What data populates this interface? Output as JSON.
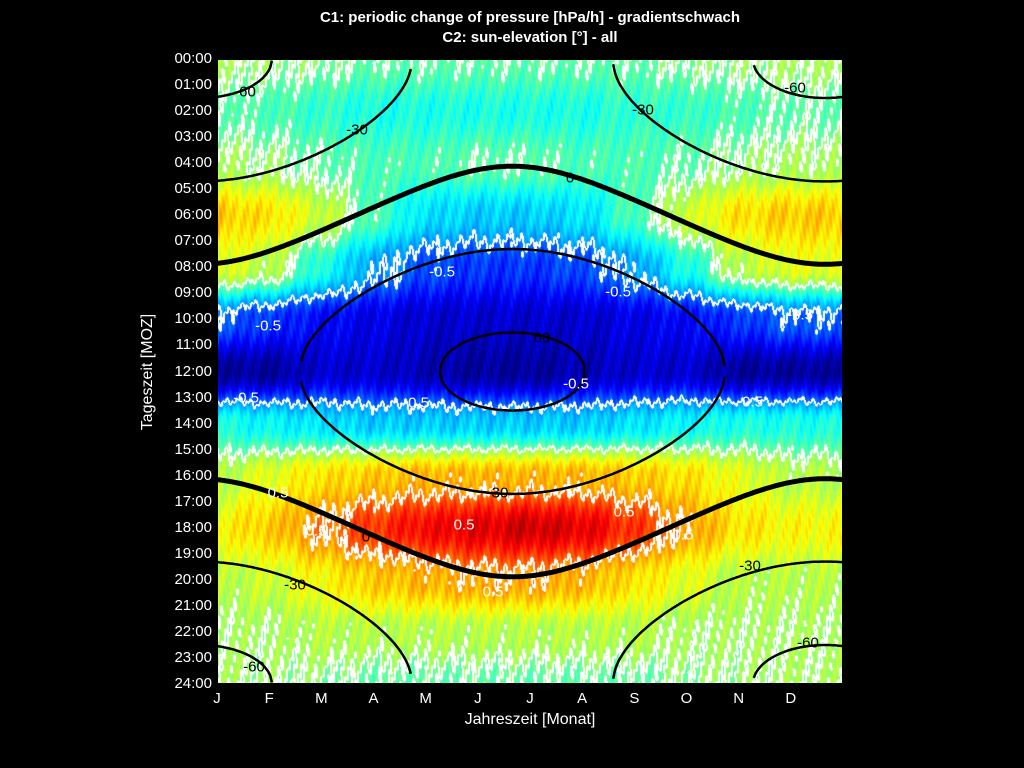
{
  "chart_data": {
    "type": "heatmap",
    "title": [
      "C1: periodic change of pressure [hPa/h] - gradientschwach",
      "C2: sun-elevation [°] - all"
    ],
    "xlabel": "Jahreszeit [Monat]",
    "ylabel": "Tageszeit [MOZ]",
    "x_ticks": [
      "J",
      "F",
      "M",
      "A",
      "M",
      "J",
      "J",
      "A",
      "S",
      "O",
      "N",
      "D"
    ],
    "y_ticks": [
      "00:00",
      "01:00",
      "02:00",
      "03:00",
      "04:00",
      "05:00",
      "06:00",
      "07:00",
      "08:00",
      "09:00",
      "10:00",
      "11:00",
      "12:00",
      "13:00",
      "14:00",
      "15:00",
      "16:00",
      "17:00",
      "18:00",
      "19:00",
      "20:00",
      "21:00",
      "22:00",
      "23:00",
      "24:00"
    ],
    "ylim": [
      0,
      24
    ],
    "colormap": "jet",
    "color_range": [
      -1.0,
      1.0
    ],
    "c1": {
      "name": "periodic change of pressure [hPa/h]",
      "levels": [
        -0.5,
        0,
        0.5
      ],
      "level_labels": [
        "-0.5",
        "0",
        "0.5"
      ],
      "grid_hours": [
        0,
        2,
        4,
        6,
        8,
        10,
        12,
        14,
        16,
        18,
        20,
        22,
        24
      ],
      "grid_months": [
        "Jan",
        "Feb",
        "Mar",
        "Apr",
        "May",
        "Jun",
        "Jul",
        "Aug",
        "Sep",
        "Oct",
        "Nov",
        "Dec",
        "Jan"
      ],
      "values": [
        [
          0.05,
          0.02,
          0.0,
          -0.05,
          -0.05,
          -0.05,
          -0.05,
          -0.05,
          -0.05,
          0.0,
          0.02,
          0.05,
          0.05
        ],
        [
          -0.05,
          -0.1,
          -0.15,
          -0.2,
          -0.2,
          -0.2,
          -0.2,
          -0.2,
          -0.15,
          -0.15,
          -0.1,
          -0.05,
          -0.05
        ],
        [
          0.05,
          0.02,
          -0.05,
          -0.1,
          -0.1,
          -0.05,
          -0.05,
          -0.1,
          -0.1,
          -0.05,
          0.02,
          0.05,
          0.05
        ],
        [
          0.35,
          0.3,
          0.15,
          -0.1,
          -0.3,
          -0.35,
          -0.35,
          -0.3,
          -0.1,
          0.15,
          0.3,
          0.35,
          0.35
        ],
        [
          0.2,
          0.1,
          -0.2,
          -0.45,
          -0.6,
          -0.65,
          -0.65,
          -0.6,
          -0.45,
          -0.2,
          0.1,
          0.2,
          0.2
        ],
        [
          -0.55,
          -0.65,
          -0.75,
          -0.8,
          -0.85,
          -0.85,
          -0.85,
          -0.85,
          -0.8,
          -0.75,
          -0.65,
          -0.55,
          -0.55
        ],
        [
          -0.95,
          -0.95,
          -0.85,
          -0.85,
          -0.9,
          -0.95,
          -0.95,
          -0.9,
          -0.85,
          -0.85,
          -0.95,
          -0.95,
          -0.95
        ],
        [
          -0.2,
          -0.25,
          -0.3,
          -0.35,
          -0.35,
          -0.35,
          -0.35,
          -0.35,
          -0.3,
          -0.25,
          -0.2,
          -0.2,
          -0.2
        ],
        [
          0.1,
          0.2,
          0.3,
          0.35,
          0.4,
          0.4,
          0.4,
          0.4,
          0.35,
          0.3,
          0.2,
          0.1,
          0.1
        ],
        [
          0.25,
          0.35,
          0.5,
          0.65,
          0.75,
          0.8,
          0.85,
          0.8,
          0.65,
          0.45,
          0.3,
          0.25,
          0.25
        ],
        [
          0.1,
          0.15,
          0.25,
          0.35,
          0.4,
          0.45,
          0.45,
          0.4,
          0.3,
          0.2,
          0.1,
          0.1,
          0.1
        ],
        [
          0.05,
          0.05,
          0.1,
          0.1,
          0.1,
          0.1,
          0.1,
          0.1,
          0.1,
          0.05,
          0.05,
          0.05,
          0.05
        ],
        [
          0.05,
          0.02,
          0.0,
          -0.05,
          -0.05,
          -0.05,
          -0.05,
          -0.05,
          -0.05,
          0.0,
          0.02,
          0.05,
          0.05
        ]
      ]
    },
    "c2": {
      "name": "sun-elevation [°]",
      "levels": [
        -60,
        -30,
        0,
        30,
        60
      ],
      "level_labels": [
        "-60",
        "-30",
        "0",
        "30",
        "60"
      ]
    }
  }
}
